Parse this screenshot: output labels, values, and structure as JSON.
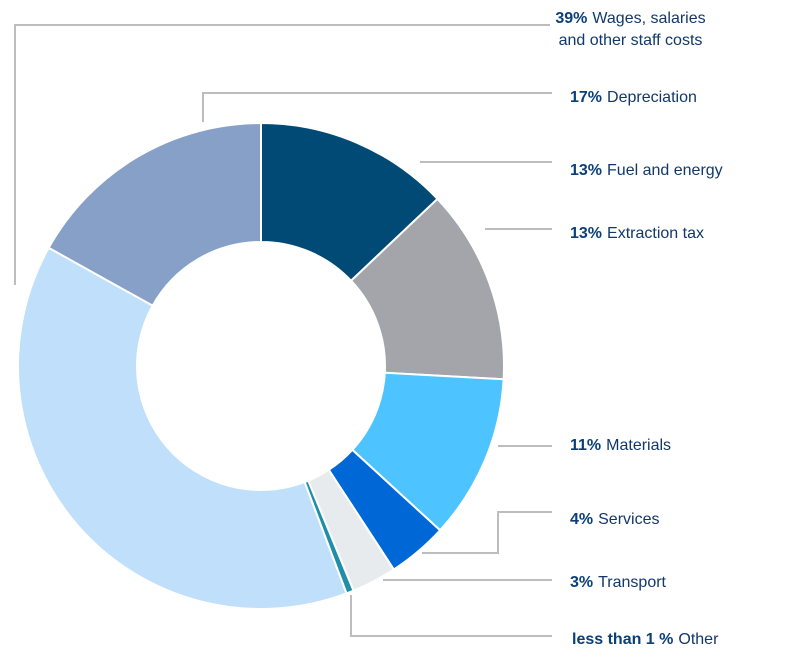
{
  "chart_data": {
    "type": "donut",
    "categories": [
      "Fuel and energy",
      "Extraction tax",
      "Materials",
      "Services",
      "Transport",
      "Other",
      "Wages, salaries and other staff costs",
      "Depreciation"
    ],
    "values": [
      13,
      13,
      11,
      4,
      3,
      0.5,
      39,
      17
    ],
    "value_labels": [
      "13%",
      "13%",
      "11%",
      "4%",
      "3%",
      "less than 1 %",
      "39%",
      "17%"
    ],
    "colors": [
      "#004a75",
      "#a3a5aa",
      "#4dc3ff",
      "#0068d6",
      "#e8ebee",
      "#1f8fa8",
      "#bfdffb",
      "#86a0c8"
    ]
  }
}
